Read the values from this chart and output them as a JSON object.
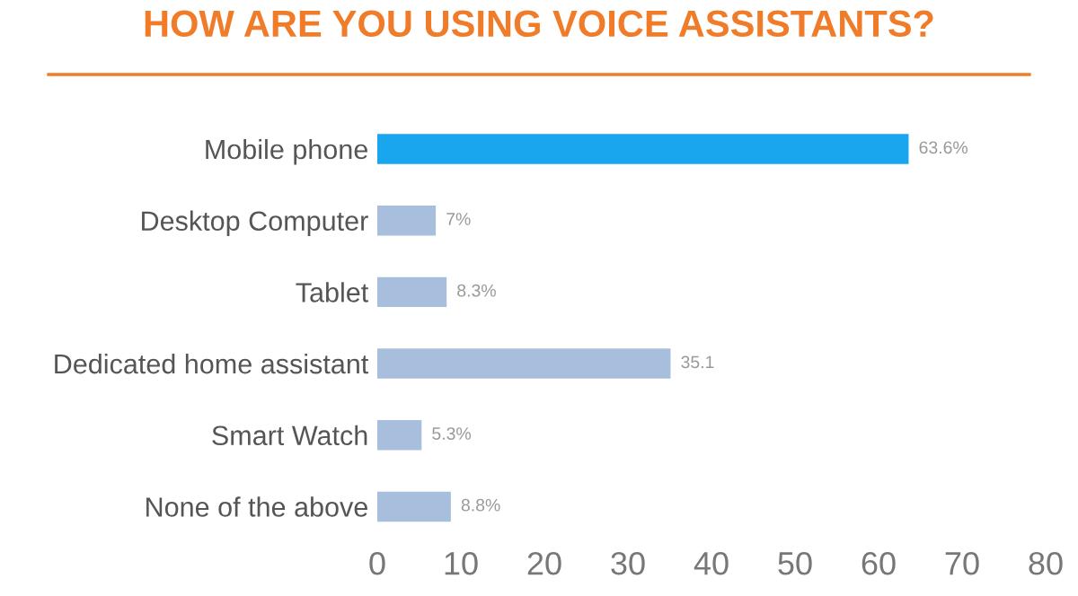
{
  "chart_data": {
    "type": "bar",
    "orientation": "horizontal",
    "title": "HOW ARE YOU USING VOICE ASSISTANTS?",
    "categories": [
      "Mobile phone",
      "Desktop Computer",
      "Tablet",
      "Dedicated home assistant",
      "Smart Watch",
      "None of the above"
    ],
    "values": [
      63.6,
      7,
      8.3,
      35.1,
      5.3,
      8.8
    ],
    "colors": [
      "#1aa6ee",
      "#a7bedc",
      "#a7bedc",
      "#a7bedc",
      "#a7bedc",
      "#a7bedc"
    ],
    "value_labels": [
      "63.6%",
      "7%",
      "8.3%",
      "35.1",
      "5.3%",
      "8.8%"
    ],
    "xlim": [
      0,
      80
    ],
    "xticks": [
      0,
      10,
      20,
      30,
      40,
      50,
      60,
      70,
      80
    ],
    "grid": false,
    "legend": false
  }
}
